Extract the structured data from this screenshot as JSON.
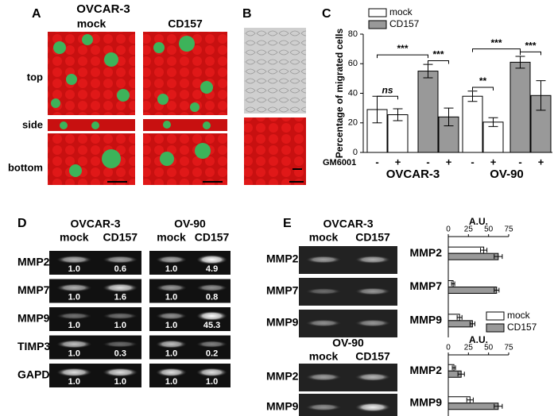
{
  "figure": {
    "panelA": {
      "label": "A",
      "title": "OVCAR-3",
      "columns": [
        "mock",
        "CD157"
      ],
      "rows": [
        "top",
        "side",
        "bottom"
      ]
    },
    "panelB": {
      "label": "B"
    },
    "panelC": {
      "label": "C"
    },
    "panelD": {
      "label": "D",
      "groups": [
        {
          "name": "OVCAR-3",
          "lanes": [
            "mock",
            "CD157"
          ]
        },
        {
          "name": "OV-90",
          "lanes": [
            "mock",
            "CD157"
          ]
        }
      ],
      "rows": [
        {
          "gene": "MMP2",
          "values": [
            [
              "1.0",
              "0.6"
            ],
            [
              "1.0",
              "4.9"
            ]
          ]
        },
        {
          "gene": "MMP7",
          "values": [
            [
              "1.0",
              "1.6"
            ],
            [
              "1.0",
              "0.8"
            ]
          ]
        },
        {
          "gene": "MMP9",
          "values": [
            [
              "1.0",
              "1.0"
            ],
            [
              "1.0",
              "45.3"
            ]
          ]
        },
        {
          "gene": "TIMP3",
          "values": [
            [
              "1.0",
              "0.3"
            ],
            [
              "1.0",
              "0.2"
            ]
          ]
        },
        {
          "gene": "GAPDH",
          "values": [
            [
              "1.0",
              "1.0"
            ],
            [
              "1.0",
              "1.0"
            ]
          ]
        }
      ]
    },
    "panelE": {
      "label": "E",
      "blocks": [
        {
          "name": "OVCAR-3",
          "lanes": [
            "mock",
            "CD157"
          ],
          "genes": [
            "MMP2",
            "MMP7",
            "MMP9"
          ]
        },
        {
          "name": "OV-90",
          "lanes": [
            "mock",
            "CD157"
          ],
          "genes": [
            "MMP2",
            "MMP9"
          ]
        }
      ]
    }
  },
  "chart_data": [
    {
      "type": "bar",
      "ylabel": "Percentage of migrated cells",
      "xlabel": "GM6001",
      "groups": [
        "OVCAR-3",
        "OV-90"
      ],
      "categories": [
        "-",
        "+",
        "-",
        "+",
        "-",
        "+",
        "-",
        "+"
      ],
      "series": [
        {
          "name": "mock",
          "color": "#ffffff",
          "values": [
            29,
            25.5,
            null,
            null,
            38,
            20.5,
            null,
            null
          ],
          "errors": [
            9,
            4,
            null,
            null,
            3.5,
            3,
            null,
            null
          ]
        },
        {
          "name": "CD157",
          "color": "#999999",
          "values": [
            null,
            null,
            55,
            24,
            null,
            null,
            61,
            38.5
          ],
          "errors": [
            null,
            null,
            4.5,
            6,
            null,
            null,
            4,
            10
          ]
        }
      ],
      "ylim": [
        0,
        80
      ],
      "yticks": [
        0,
        20,
        40,
        60,
        80
      ],
      "legend": "top-left",
      "annotations": [
        "***",
        "***",
        "ns",
        "***",
        "***",
        "**"
      ]
    },
    {
      "type": "hbar",
      "xlabel": "A.U.",
      "categories": [
        "MMP2",
        "MMP7",
        "MMP9"
      ],
      "series": [
        {
          "name": "mock",
          "color": "#ffffff",
          "values": [
            44,
            6,
            14
          ],
          "errors": [
            4,
            2,
            3
          ]
        },
        {
          "name": "CD157",
          "color": "#999999",
          "values": [
            62,
            60,
            30
          ],
          "errors": [
            5,
            3,
            3
          ]
        }
      ],
      "xlim": [
        0,
        75
      ],
      "xticks": [
        0,
        25,
        50,
        75
      ],
      "legend": "bottom-right"
    },
    {
      "type": "hbar",
      "xlabel": "A.U.",
      "categories": [
        "MMP2",
        "MMP9"
      ],
      "series": [
        {
          "color": "#ffffff",
          "values": [
            7,
            27
          ],
          "errors": [
            2,
            4
          ]
        },
        {
          "color": "#999999",
          "values": [
            16,
            62
          ],
          "errors": [
            4,
            5
          ]
        }
      ],
      "xlim": [
        0,
        75
      ],
      "xticks": [
        0,
        25,
        50,
        75
      ]
    }
  ]
}
